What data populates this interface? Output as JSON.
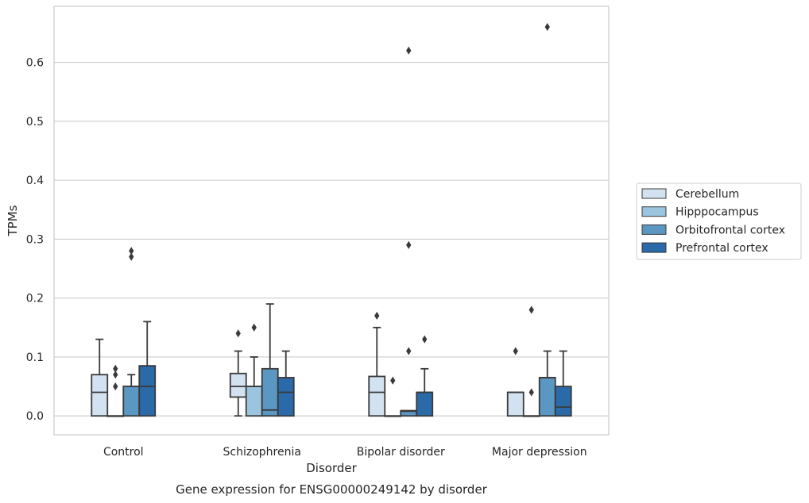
{
  "chart_data": {
    "type": "box",
    "title": "",
    "caption": "Gene expression for ENSG00000249142 by disorder",
    "xlabel": "Disorder",
    "ylabel": "TPMs",
    "ylim": [
      -0.032,
      0.695
    ],
    "yticks": [
      "0.0",
      "0.1",
      "0.2",
      "0.3",
      "0.4",
      "0.5",
      "0.6"
    ],
    "grid": "horizontal",
    "legend_position": "right",
    "categories": [
      "Control",
      "Schizophrenia",
      "Bipolar disorder",
      "Major depression"
    ],
    "series": [
      {
        "name": "Cerebellum",
        "color": "#d3e2f1",
        "boxes": [
          {
            "lo": 0,
            "q1": 0,
            "median": 0.04,
            "q3": 0.07,
            "hi": 0.13,
            "outliers": []
          },
          {
            "lo": 0,
            "q1": 0.032,
            "median": 0.05,
            "q3": 0.072,
            "hi": 0.11,
            "outliers": [
              0.14
            ]
          },
          {
            "lo": 0,
            "q1": 0,
            "median": 0.04,
            "q3": 0.067,
            "hi": 0.15,
            "outliers": [
              0.17
            ]
          },
          {
            "lo": 0,
            "q1": 0,
            "median": 0.04,
            "q3": 0.04,
            "hi": 0.04,
            "outliers": [
              0.11
            ]
          }
        ]
      },
      {
        "name": "Hipppocampus",
        "color": "#9bc4de",
        "boxes": [
          {
            "lo": 0,
            "q1": 0,
            "median": 0,
            "q3": 0,
            "hi": 0,
            "outliers": [
              0.05,
              0.07,
              0.08
            ]
          },
          {
            "lo": 0,
            "q1": 0,
            "median": 0.05,
            "q3": 0.05,
            "hi": 0.1,
            "outliers": [
              0.15
            ]
          },
          {
            "lo": 0,
            "q1": 0,
            "median": 0,
            "q3": 0,
            "hi": 0,
            "outliers": [
              0.06
            ]
          },
          {
            "lo": 0,
            "q1": 0,
            "median": 0,
            "q3": 0,
            "hi": 0,
            "outliers": [
              0.04,
              0.18
            ]
          }
        ]
      },
      {
        "name": "Orbitofrontal cortex",
        "color": "#5a97c3",
        "boxes": [
          {
            "lo": 0,
            "q1": 0,
            "median": 0.05,
            "q3": 0.05,
            "hi": 0.07,
            "outliers": [
              0.27,
              0.28
            ]
          },
          {
            "lo": 0,
            "q1": 0,
            "median": 0.01,
            "q3": 0.08,
            "hi": 0.19,
            "outliers": []
          },
          {
            "lo": 0,
            "q1": 0,
            "median": 0.008,
            "q3": 0.009,
            "hi": 0.009,
            "outliers": [
              0.11,
              0.29,
              0.62
            ]
          },
          {
            "lo": 0,
            "q1": 0,
            "median": 0.065,
            "q3": 0.065,
            "hi": 0.11,
            "outliers": [
              0.66
            ]
          }
        ]
      },
      {
        "name": "Prefrontal cortex",
        "color": "#2a6aa8",
        "boxes": [
          {
            "lo": 0,
            "q1": 0,
            "median": 0.05,
            "q3": 0.085,
            "hi": 0.16,
            "outliers": []
          },
          {
            "lo": 0,
            "q1": 0,
            "median": 0.04,
            "q3": 0.065,
            "hi": 0.11,
            "outliers": []
          },
          {
            "lo": 0,
            "q1": 0,
            "median": 0.04,
            "q3": 0.04,
            "hi": 0.08,
            "outliers": [
              0.13
            ]
          },
          {
            "lo": 0,
            "q1": 0,
            "median": 0.015,
            "q3": 0.05,
            "hi": 0.11,
            "outliers": []
          }
        ]
      }
    ]
  }
}
